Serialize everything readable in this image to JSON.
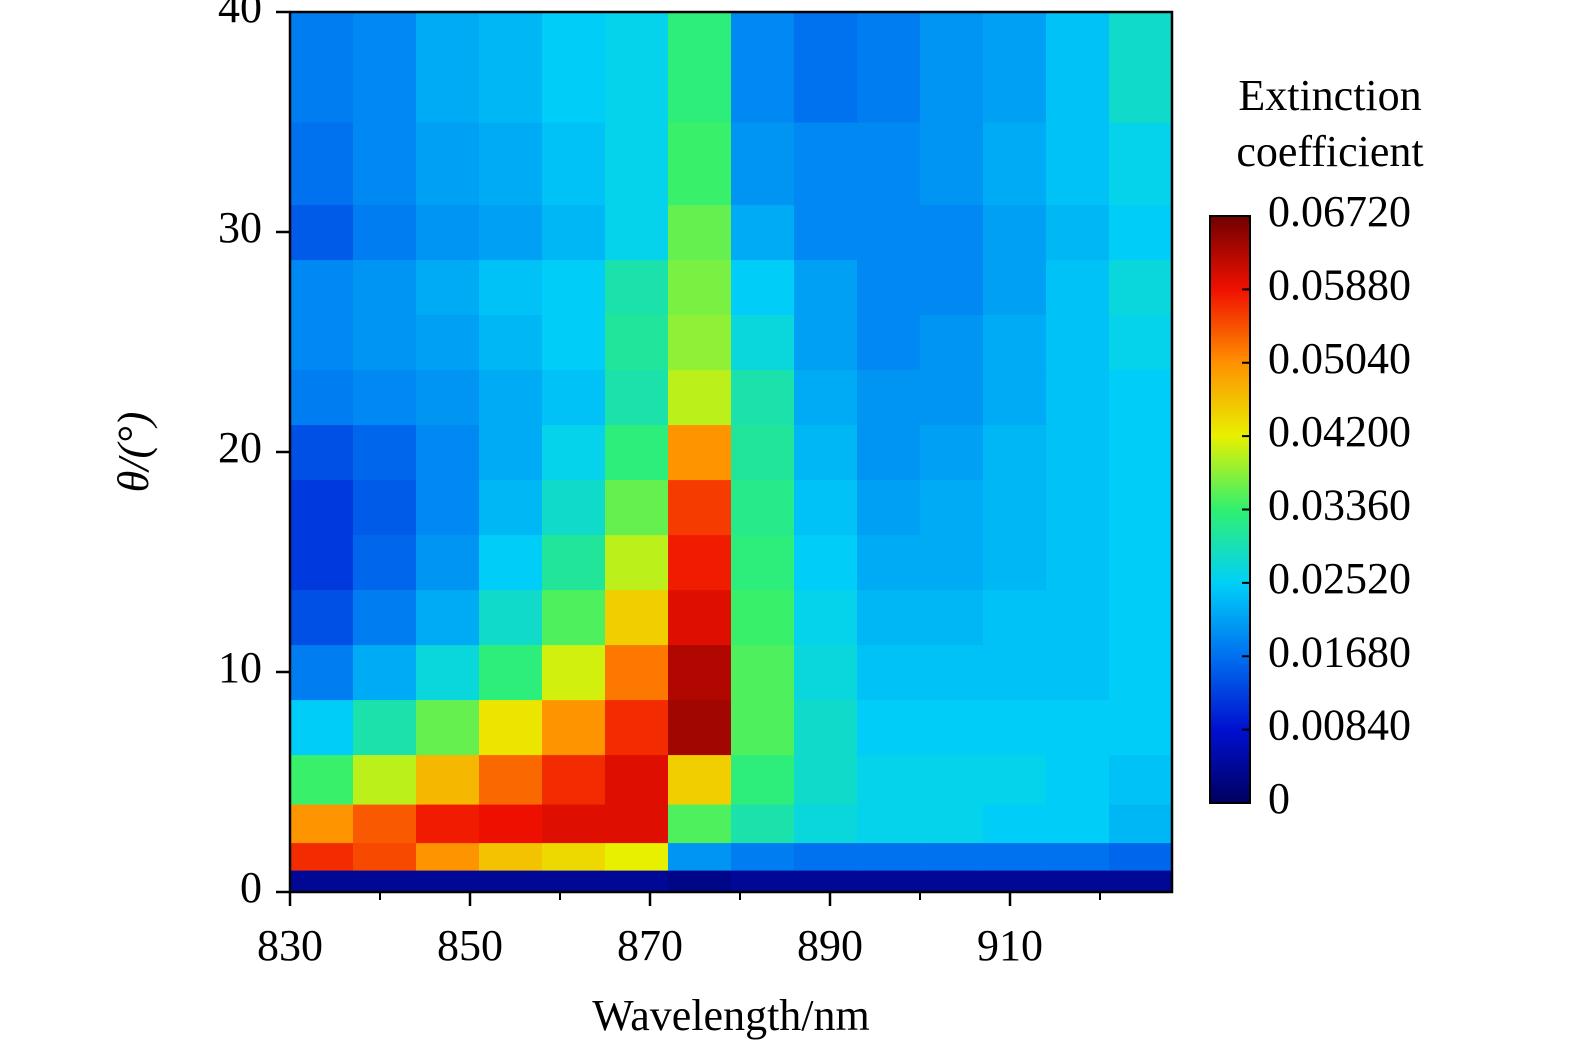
{
  "chart_data": {
    "type": "contour",
    "xlabel": "Wavelength/nm",
    "ylabel": "θ/(°)",
    "colorbar_label": [
      "Extinction",
      "coefficient"
    ],
    "xlim": [
      830,
      928
    ],
    "ylim": [
      0,
      40
    ],
    "xticks": [
      830,
      850,
      870,
      890,
      910
    ],
    "xminor": [
      840,
      860,
      880,
      900,
      920
    ],
    "yticks": [
      0,
      10,
      20,
      30,
      40
    ],
    "clim": [
      0,
      0.0672
    ],
    "cticks": [
      0,
      {
        "value": 0.0084,
        "label": "0.00840"
      },
      {
        "value": 0.0168,
        "label": "0.01680"
      },
      {
        "value": 0.0252,
        "label": "0.02520"
      },
      {
        "value": 0.0336,
        "label": "0.03360"
      },
      {
        "value": 0.042,
        "label": "0.04200"
      },
      {
        "value": 0.0504,
        "label": "0.05040"
      },
      {
        "value": 0.0588,
        "label": "0.05880"
      },
      {
        "value": 0.0672,
        "label": "0.06720"
      }
    ],
    "colormap": [
      "#000060",
      "#0010d0",
      "#0070f0",
      "#00d0f8",
      "#30f070",
      "#e8f000",
      "#ff9000",
      "#f01000",
      "#700000"
    ],
    "x": [
      833.5,
      840.5,
      847.5,
      854.5,
      861.5,
      868.5,
      875.5,
      882.5,
      889.5,
      896.5,
      903.5,
      910.5,
      917.5,
      924.5
    ],
    "y": [
      0.5,
      1.5,
      3,
      5,
      7.5,
      10,
      12.5,
      15,
      17.5,
      20,
      22.5,
      25,
      27.5,
      30,
      32.5,
      37.5
    ],
    "z": [
      [
        0.004,
        0.004,
        0.004,
        0.004,
        0.004,
        0.004,
        0.003,
        0.004,
        0.004,
        0.004,
        0.004,
        0.004,
        0.004,
        0.004
      ],
      [
        0.057,
        0.055,
        0.05,
        0.046,
        0.044,
        0.042,
        0.02,
        0.018,
        0.017,
        0.017,
        0.017,
        0.017,
        0.017,
        0.016
      ],
      [
        0.05,
        0.054,
        0.058,
        0.059,
        0.06,
        0.06,
        0.035,
        0.03,
        0.027,
        0.026,
        0.026,
        0.025,
        0.025,
        0.023
      ],
      [
        0.034,
        0.04,
        0.047,
        0.053,
        0.057,
        0.06,
        0.045,
        0.033,
        0.028,
        0.026,
        0.026,
        0.026,
        0.025,
        0.024
      ],
      [
        0.025,
        0.03,
        0.036,
        0.043,
        0.05,
        0.057,
        0.064,
        0.035,
        0.028,
        0.025,
        0.025,
        0.025,
        0.025,
        0.025
      ],
      [
        0.018,
        0.022,
        0.027,
        0.033,
        0.041,
        0.052,
        0.063,
        0.035,
        0.027,
        0.024,
        0.024,
        0.024,
        0.024,
        0.025
      ],
      [
        0.014,
        0.018,
        0.022,
        0.028,
        0.035,
        0.045,
        0.06,
        0.034,
        0.026,
        0.023,
        0.023,
        0.024,
        0.024,
        0.025
      ],
      [
        0.012,
        0.016,
        0.02,
        0.025,
        0.031,
        0.04,
        0.058,
        0.033,
        0.025,
        0.022,
        0.022,
        0.023,
        0.024,
        0.025
      ],
      [
        0.012,
        0.015,
        0.019,
        0.023,
        0.028,
        0.036,
        0.056,
        0.032,
        0.024,
        0.021,
        0.022,
        0.023,
        0.024,
        0.025
      ],
      [
        0.014,
        0.016,
        0.019,
        0.022,
        0.026,
        0.033,
        0.05,
        0.031,
        0.023,
        0.02,
        0.021,
        0.023,
        0.024,
        0.025
      ],
      [
        0.018,
        0.019,
        0.02,
        0.022,
        0.024,
        0.03,
        0.04,
        0.03,
        0.022,
        0.02,
        0.02,
        0.022,
        0.024,
        0.025
      ],
      [
        0.019,
        0.02,
        0.021,
        0.023,
        0.025,
        0.031,
        0.038,
        0.027,
        0.021,
        0.019,
        0.02,
        0.022,
        0.024,
        0.026
      ],
      [
        0.019,
        0.02,
        0.022,
        0.024,
        0.025,
        0.03,
        0.037,
        0.025,
        0.021,
        0.019,
        0.019,
        0.021,
        0.024,
        0.027
      ],
      [
        0.015,
        0.018,
        0.02,
        0.021,
        0.023,
        0.026,
        0.036,
        0.022,
        0.019,
        0.019,
        0.019,
        0.021,
        0.023,
        0.025
      ],
      [
        0.017,
        0.019,
        0.021,
        0.022,
        0.024,
        0.026,
        0.034,
        0.02,
        0.019,
        0.019,
        0.02,
        0.022,
        0.024,
        0.026
      ],
      [
        0.018,
        0.019,
        0.022,
        0.023,
        0.025,
        0.026,
        0.033,
        0.019,
        0.017,
        0.018,
        0.02,
        0.021,
        0.024,
        0.028
      ]
    ]
  }
}
